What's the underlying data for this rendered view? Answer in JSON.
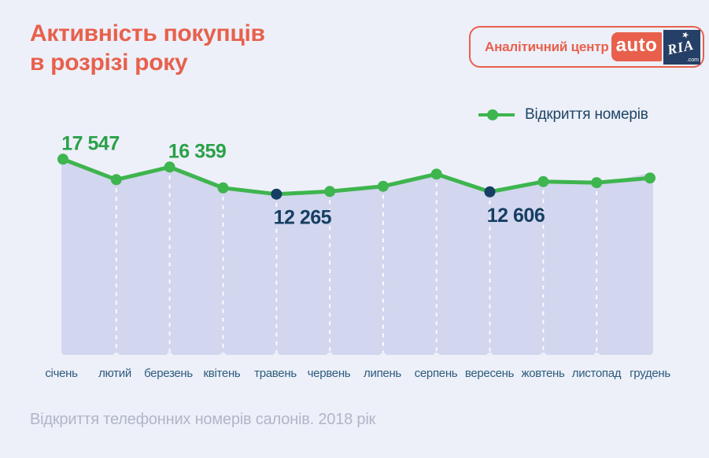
{
  "page": {
    "title_line1": "Активність покупців",
    "title_line2": "в розрізі року",
    "footer_caption": "Відкриття телефонних номерів салонів. 2018 рік"
  },
  "badge": {
    "label": "Аналітичний центр",
    "logo": {
      "auto": "auto",
      "ria": "RIA",
      "star": "★",
      "tld": ".com"
    }
  },
  "legend": {
    "series_label": "Відкриття номерів"
  },
  "colors": {
    "background": "#edf0f9",
    "accent_red": "#e8604c",
    "line_green": "#3eb54e",
    "green_label": "#2aa148",
    "navy": "#153f63",
    "area_fill": "#d2d6ee",
    "month_label": "#2d5c7e",
    "legend_text": "#1e4466",
    "caption_gray": "#b1b5c9",
    "ria_navy": "#253f66"
  },
  "chart_data": {
    "type": "area",
    "title": "Активність покупців в розрізі року",
    "subtitle": "Відкриття телефонних номерів салонів. 2018 рік",
    "series_name": "Відкриття номерів",
    "categories": [
      "січень",
      "лютий",
      "березень",
      "квітень",
      "травень",
      "червень",
      "липень",
      "серпень",
      "вересень",
      "жовтень",
      "листопад",
      "грудень"
    ],
    "values": [
      17547,
      14450,
      16359,
      13200,
      12265,
      12670,
      13450,
      15300,
      12606,
      14150,
      14000,
      14700
    ],
    "estimated_indices": [
      1,
      3,
      5,
      6,
      7,
      9,
      10,
      11
    ],
    "annotations": [
      {
        "index": 0,
        "category": "січень",
        "label": "17 547",
        "value": 17547,
        "placement": "above",
        "color": "#2aa148"
      },
      {
        "index": 2,
        "category": "березень",
        "label": "16 359",
        "value": 16359,
        "placement": "above",
        "color": "#2aa148"
      },
      {
        "index": 4,
        "category": "травень",
        "label": "12 265",
        "value": 12265,
        "placement": "below",
        "color": "#153f63"
      },
      {
        "index": 8,
        "category": "вересень",
        "label": "12 606",
        "value": 12606,
        "placement": "below",
        "color": "#153f63"
      }
    ],
    "highlight_indices": [
      4,
      8
    ],
    "ylim": [
      11500,
      18500
    ],
    "grid": "vertical-dashed-white",
    "legend_position": "top-right"
  }
}
